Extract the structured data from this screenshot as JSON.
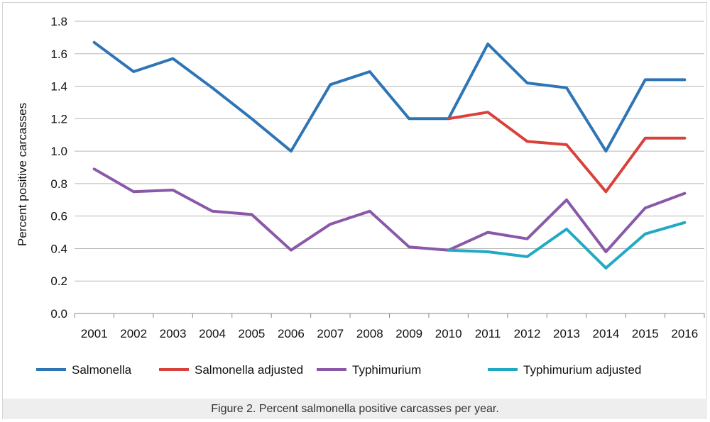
{
  "figure": {
    "caption": "Figure 2. Percent salmonella positive carcasses per year."
  },
  "chart_data": {
    "type": "line",
    "title": "",
    "xlabel": "",
    "ylabel": "Percent positive carcasses",
    "ylim": [
      0,
      1.8
    ],
    "yticks": [
      "0.0",
      "0.2",
      "0.4",
      "0.6",
      "0.8",
      "1.0",
      "1.2",
      "1.4",
      "1.6",
      "1.8"
    ],
    "grid": "horizontal",
    "legend": "bottom",
    "categories": [
      "2001",
      "2002",
      "2003",
      "2004",
      "2005",
      "2006",
      "2007",
      "2008",
      "2009",
      "2010",
      "2011",
      "2012",
      "2013",
      "2014",
      "2015",
      "2016"
    ],
    "series": [
      {
        "name": "Salmonella",
        "color": "#2e75b6",
        "values": [
          1.67,
          1.49,
          1.57,
          1.39,
          1.2,
          1.0,
          1.41,
          1.49,
          1.2,
          1.2,
          1.66,
          1.42,
          1.39,
          1.0,
          1.44,
          1.44
        ]
      },
      {
        "name": "Salmonella adjusted",
        "color": "#d9423a",
        "values": [
          null,
          null,
          null,
          null,
          null,
          null,
          null,
          null,
          null,
          1.2,
          1.24,
          1.06,
          1.04,
          0.75,
          1.08,
          1.08
        ]
      },
      {
        "name": "Typhimurium",
        "color": "#8a58a8",
        "values": [
          0.89,
          0.75,
          0.76,
          0.63,
          0.61,
          0.39,
          0.55,
          0.63,
          0.41,
          0.39,
          0.5,
          0.46,
          0.7,
          0.38,
          0.65,
          0.74
        ]
      },
      {
        "name": "Typhimurium adjusted",
        "color": "#21a9c4",
        "values": [
          null,
          null,
          null,
          null,
          null,
          null,
          null,
          null,
          null,
          0.39,
          0.38,
          0.35,
          0.52,
          0.28,
          0.49,
          0.56
        ]
      }
    ]
  }
}
